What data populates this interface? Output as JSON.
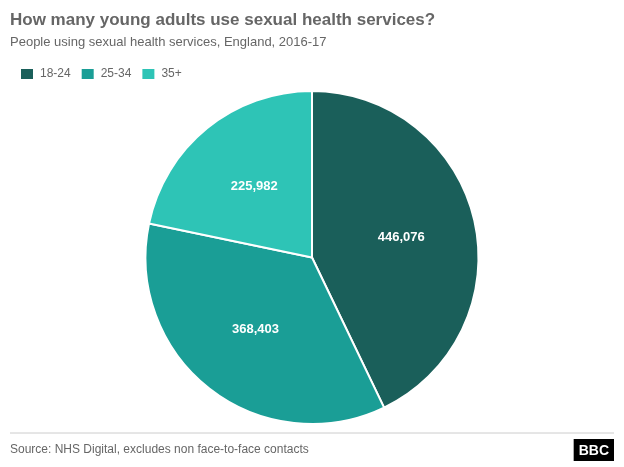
{
  "chart_data": {
    "type": "pie",
    "title": "How many young adults use sexual health services?",
    "subtitle": "People using sexual health services, England, 2016-17",
    "categories": [
      "18-24",
      "25-34",
      "35+"
    ],
    "values": [
      446076,
      368403,
      225982
    ],
    "value_labels": [
      "446,076",
      "368,403",
      "225,982"
    ],
    "colors": [
      "#1a5f5a",
      "#1a9e96",
      "#2ec4b6"
    ],
    "data_labels": true,
    "legend": "top-left",
    "annotations": [
      "Source: NHS Digital, excludes non face-to-face contacts",
      "BBC"
    ]
  }
}
